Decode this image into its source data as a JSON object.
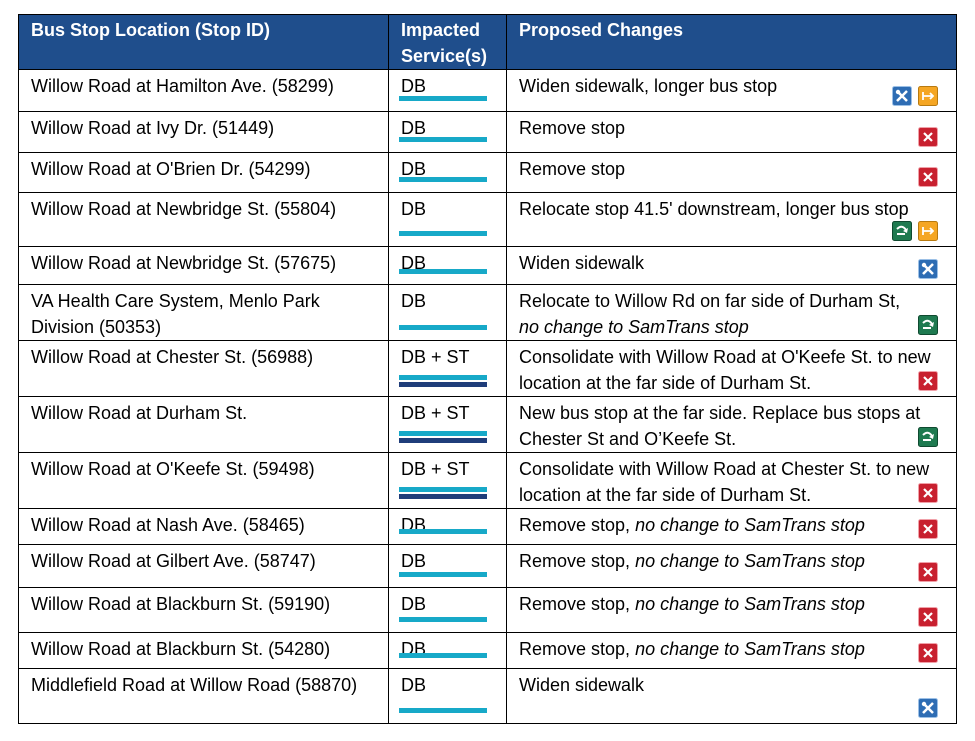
{
  "table": {
    "headers": [
      "Bus Stop Location (Stop ID)",
      "Impacted Service(s)",
      "Proposed Changes"
    ],
    "rows": [
      {
        "location": "Willow Road at Hamilton Ave. (58299)",
        "service": "DB",
        "changes": "Widen sidewalk, longer bus stop"
      },
      {
        "location": "Willow Road at Ivy Dr. (51449)",
        "service": "DB",
        "changes": "Remove stop"
      },
      {
        "location": "Willow Road at O'Brien Dr. (54299)",
        "service": "DB",
        "changes": "Remove stop"
      },
      {
        "location": "Willow Road at Newbridge St. (55804)",
        "service": "DB",
        "changes": "Relocate stop 41.5' downstream, longer bus stop"
      },
      {
        "location": "Willow Road at Newbridge St. (57675)",
        "service": "DB",
        "changes": "Widen sidewalk"
      },
      {
        "location": "VA Health Care System, Menlo Park Division (50353)",
        "service": "DB",
        "changes": "Relocate to Willow Rd on far side of Durham St,",
        "note": "no change to SamTrans stop"
      },
      {
        "location": "Willow Road at Chester St. (56988)",
        "service": "DB + ST",
        "changes": "Consolidate with Willow Road at O'Keefe St. to new location at the far side of Durham St."
      },
      {
        "location": "Willow Road at Durham St.",
        "service": "DB + ST",
        "changes": "New bus stop at the far side.  Replace bus stops at Chester St and O’Keefe St."
      },
      {
        "location": "Willow Road at O'Keefe St. (59498)",
        "service": "DB + ST",
        "changes": "Consolidate with Willow Road at Chester St. to new location at the far side of Durham St."
      },
      {
        "location": "Willow Road at Nash Ave. (58465)",
        "service": "DB",
        "changes": "Remove stop,",
        "note": "no change to SamTrans stop"
      },
      {
        "location": "Willow Road at Gilbert Ave. (58747)",
        "service": "DB",
        "changes": "Remove stop,",
        "note": "no change to SamTrans stop"
      },
      {
        "location": "Willow Road at Blackburn St. (59190)",
        "service": "DB",
        "changes": "Remove stop,",
        "note": "no change to SamTrans stop"
      },
      {
        "location": "Willow Road at Blackburn St. (54280)",
        "service": "DB",
        "changes": "Remove stop,",
        "note": "no change to SamTrans stop"
      },
      {
        "location": "Middlefield Road at Willow Road (58870)",
        "service": "DB",
        "changes": "Widen sidewalk"
      }
    ]
  }
}
